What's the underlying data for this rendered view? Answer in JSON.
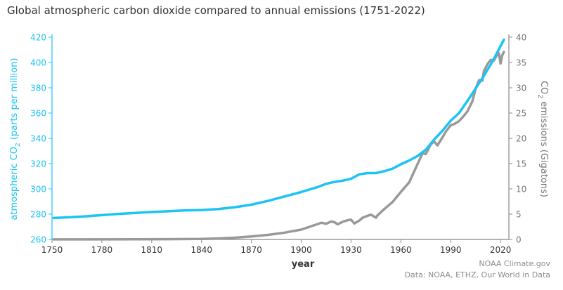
{
  "chart_data": {
    "type": "line",
    "title": "Global atmospheric carbon dioxide compared to annual emissions (1751-2022)",
    "xlabel": "year",
    "ylabel_left_main": "atmospheric CO",
    "ylabel_left_sub": "2",
    "ylabel_left_tail": " (parts per million)",
    "ylabel_right_main": "CO",
    "ylabel_right_sub": "2",
    "ylabel_right_tail": " emissions (Gigatons)",
    "xlim": [
      1750,
      2025
    ],
    "ylim_left": [
      260,
      420
    ],
    "ylim_right": [
      0,
      40
    ],
    "x_ticks": [
      1750,
      1780,
      1810,
      1840,
      1870,
      1900,
      1930,
      1960,
      1990,
      2020
    ],
    "y_ticks_left": [
      260,
      280,
      300,
      320,
      340,
      360,
      380,
      400,
      420
    ],
    "y_ticks_right": [
      0,
      5,
      10,
      15,
      20,
      25,
      30,
      35,
      40
    ],
    "grid": false,
    "colors": {
      "co2": "#1cc3f5",
      "emissions": "#999999",
      "axis": "#888888",
      "text": "#333333"
    },
    "series": [
      {
        "axis": "left",
        "x": [
          1751,
          1760,
          1770,
          1780,
          1790,
          1800,
          1810,
          1820,
          1830,
          1840,
          1850,
          1860,
          1870,
          1880,
          1890,
          1900,
          1910,
          1915,
          1920,
          1925,
          1930,
          1935,
          1940,
          1945,
          1950,
          1955,
          1960,
          1965,
          1970,
          1975,
          1980,
          1985,
          1990,
          1995,
          2000,
          2005,
          2010,
          2015,
          2020,
          2022
        ],
        "values": [
          277,
          277.5,
          278.3,
          279.2,
          280.2,
          281,
          281.7,
          282.3,
          283,
          283.3,
          284,
          285.5,
          287.5,
          290.5,
          294,
          297.5,
          301.5,
          304,
          305.5,
          306.5,
          308,
          311.5,
          312.5,
          312.5,
          314,
          316,
          319.5,
          322.5,
          326,
          331,
          339,
          346,
          354,
          360,
          369.5,
          379.5,
          389.5,
          400.5,
          413,
          418
        ]
      },
      {
        "axis": "right",
        "x": [
          1751,
          1800,
          1820,
          1840,
          1850,
          1860,
          1870,
          1880,
          1890,
          1900,
          1905,
          1910,
          1912,
          1915,
          1918,
          1920,
          1922,
          1925,
          1928,
          1930,
          1932,
          1935,
          1937,
          1940,
          1942,
          1945,
          1946,
          1950,
          1955,
          1960,
          1965,
          1970,
          1973,
          1975,
          1978,
          1980,
          1982,
          1985,
          1987,
          1990,
          1992,
          1995,
          1998,
          2000,
          2003,
          2005,
          2007,
          2009,
          2010,
          2012,
          2014,
          2016,
          2018,
          2019,
          2020,
          2021,
          2022
        ],
        "values": [
          0.01,
          0.03,
          0.05,
          0.1,
          0.2,
          0.35,
          0.6,
          0.9,
          1.35,
          1.95,
          2.5,
          3.05,
          3.3,
          3.1,
          3.55,
          3.4,
          3.0,
          3.5,
          3.8,
          3.9,
          3.15,
          3.75,
          4.3,
          4.7,
          4.9,
          4.3,
          4.8,
          6.0,
          7.4,
          9.4,
          11.3,
          14.9,
          17.0,
          16.9,
          18.8,
          19.4,
          18.6,
          20.2,
          21.3,
          22.6,
          22.8,
          23.4,
          24.5,
          25.3,
          27.3,
          29.8,
          31.5,
          31.4,
          33.3,
          34.6,
          35.5,
          35.4,
          36.6,
          36.8,
          34.8,
          36.4,
          37.1
        ]
      }
    ]
  },
  "credits": {
    "line1": "NOAA Climate.gov",
    "line2": "Data: NOAA, ETHZ, Our World in Data"
  }
}
